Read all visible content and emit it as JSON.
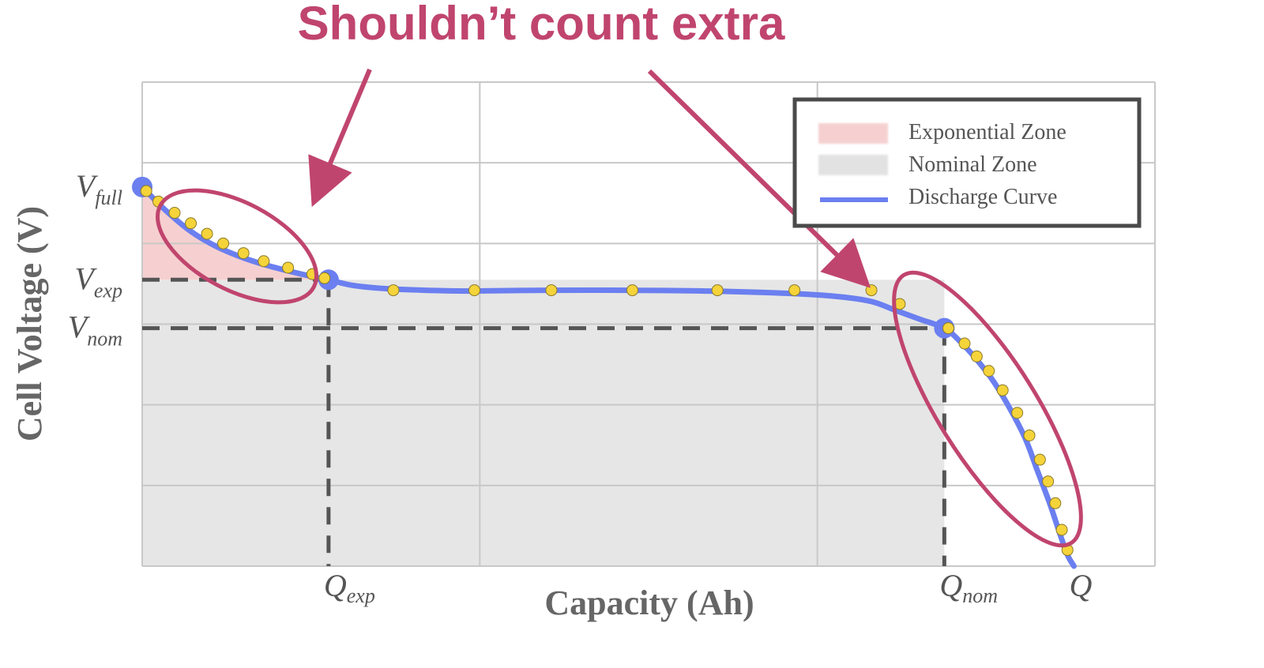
{
  "annotation": {
    "text": "Shouldn’t count extra",
    "color": "#c0456e"
  },
  "chart_data": {
    "type": "line",
    "title": "",
    "xlabel": "Capacity (Ah)",
    "ylabel": "Cell Voltage (V)",
    "xlim": [
      0,
      12.5
    ],
    "ylim": [
      0,
      6
    ],
    "grid": true,
    "legend_position": "top-right",
    "legend": [
      {
        "label": "Exponential Zone",
        "color": "#f6d0d0",
        "kind": "patch"
      },
      {
        "label": "Nominal Zone",
        "color": "#e6e6e6",
        "kind": "patch"
      },
      {
        "label": "Discharge Curve",
        "color": "#6b7ff0",
        "kind": "line"
      }
    ],
    "x_ticks": [
      {
        "base": "Q",
        "sub": "exp",
        "value": 2.3
      },
      {
        "base": "Q",
        "sub": "nom",
        "value": 9.9
      },
      {
        "base": "Q",
        "sub": "",
        "value": 11.5
      }
    ],
    "y_ticks": [
      {
        "base": "V",
        "sub": "full",
        "value": 4.7
      },
      {
        "base": "V",
        "sub": "exp",
        "value": 3.55
      },
      {
        "base": "V",
        "sub": "nom",
        "value": 2.95
      }
    ],
    "curve_color": "#6b7ff0",
    "marker_color": "#f5d33a",
    "exp_zone_color": "#f6d0d0",
    "nom_zone_color": "#e6e6e6",
    "curve": {
      "x": [
        0,
        0.3,
        0.6,
        0.9,
        1.2,
        1.5,
        1.8,
        2.1,
        2.3,
        2.6,
        3.0,
        3.5,
        4.0,
        5.0,
        6.0,
        7.0,
        8.0,
        8.6,
        9.0,
        9.3,
        9.6,
        9.9,
        10.1,
        10.3,
        10.5,
        10.7,
        10.9,
        11.05,
        11.2,
        11.32,
        11.42,
        11.5
      ],
      "y": [
        4.7,
        4.4,
        4.15,
        3.97,
        3.84,
        3.74,
        3.66,
        3.59,
        3.55,
        3.48,
        3.44,
        3.42,
        3.41,
        3.42,
        3.42,
        3.41,
        3.38,
        3.34,
        3.28,
        3.17,
        3.06,
        2.95,
        2.78,
        2.56,
        2.3,
        1.97,
        1.58,
        1.18,
        0.78,
        0.42,
        0.14,
        0
      ]
    },
    "markers": {
      "x": [
        0.05,
        0.2,
        0.4,
        0.6,
        0.8,
        1.0,
        1.25,
        1.5,
        1.8,
        2.1,
        2.25,
        3.1,
        4.1,
        5.05,
        6.05,
        7.1,
        8.05,
        9.0,
        9.35,
        9.95,
        10.15,
        10.3,
        10.45,
        10.62,
        10.8,
        10.95,
        11.08,
        11.18,
        11.27,
        11.35,
        11.42
      ],
      "y": [
        4.65,
        4.52,
        4.38,
        4.25,
        4.12,
        4.0,
        3.88,
        3.78,
        3.7,
        3.62,
        3.57,
        3.42,
        3.42,
        3.42,
        3.42,
        3.42,
        3.42,
        3.42,
        3.25,
        2.95,
        2.76,
        2.6,
        2.42,
        2.18,
        1.9,
        1.62,
        1.32,
        1.05,
        0.78,
        0.45,
        0.2
      ]
    }
  }
}
